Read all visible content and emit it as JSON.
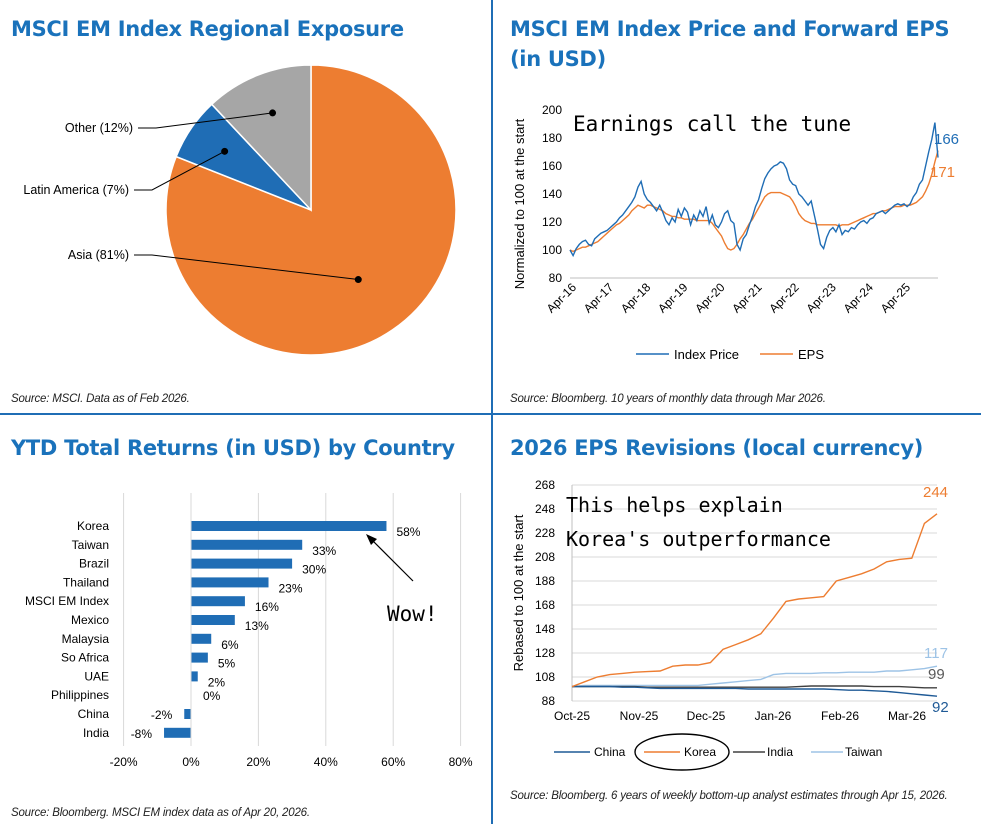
{
  "panels": [
    {
      "title": "MSCI EM Index Regional Exposure",
      "source": "Source: MSCI. Data as of Feb 2026."
    },
    {
      "title": "MSCI EM Index Price and Forward EPS (in USD)",
      "source": "Source: Bloomberg. 10 years of monthly data through Mar 2026."
    },
    {
      "title": "YTD Total Returns (in USD) by Country",
      "source": "Source: Bloomberg. MSCI EM index data as of Apr 20, 2026."
    },
    {
      "title": "2026 EPS Revisions (local currency)",
      "source": "Source: Bloomberg. 6 years of weekly bottom-up analyst estimates through Apr 15, 2026."
    }
  ],
  "chart_data": [
    {
      "type": "pie",
      "slices": [
        {
          "label": "Asia (81%)",
          "value": 81,
          "color": "#ed7d31"
        },
        {
          "label": "Latin America (7%)",
          "value": 7,
          "color": "#1f6db5"
        },
        {
          "label": "Other (12%)",
          "value": 12,
          "color": "#a6a6a6"
        }
      ]
    },
    {
      "type": "line",
      "ylabel": "Normalized to 100 at the start",
      "ylim": [
        80,
        200
      ],
      "yticks": [
        80,
        100,
        120,
        140,
        160,
        180,
        200
      ],
      "xticks": [
        "Apr-16",
        "Apr-17",
        "Apr-18",
        "Apr-19",
        "Apr-20",
        "Apr-21",
        "Apr-22",
        "Apr-23",
        "Apr-24",
        "Apr-25"
      ],
      "annotation": "Earnings call the tune",
      "series": [
        {
          "name": "Index Price",
          "color": "#1f6db5",
          "end_label": "166",
          "values": [
            100,
            96,
            101,
            104,
            106,
            107,
            104,
            103,
            108,
            110,
            112,
            113,
            114,
            116,
            118,
            120,
            123,
            125,
            128,
            131,
            134,
            138,
            145,
            149,
            140,
            136,
            134,
            131,
            128,
            132,
            127,
            121,
            118,
            123,
            120,
            129,
            124,
            130,
            127,
            118,
            125,
            121,
            128,
            124,
            131,
            119,
            125,
            118,
            116,
            120,
            126,
            128,
            121,
            119,
            104,
            100,
            108,
            111,
            118,
            124,
            131,
            136,
            144,
            151,
            155,
            158,
            160,
            161,
            163,
            162,
            158,
            150,
            147,
            146,
            140,
            138,
            135,
            132,
            135,
            125,
            115,
            104,
            101,
            109,
            114,
            116,
            113,
            118,
            111,
            114,
            113,
            116,
            115,
            118,
            120,
            121,
            119,
            122,
            123,
            126,
            127,
            128,
            126,
            128,
            130,
            132,
            133,
            132,
            133,
            131,
            133,
            138,
            141,
            147,
            150,
            160,
            170,
            179,
            191,
            166
          ]
        },
        {
          "name": "EPS",
          "color": "#ed7d31",
          "end_label": "171",
          "values": [
            100,
            99,
            100,
            101,
            102,
            102,
            103,
            104,
            105,
            106,
            108,
            110,
            112,
            114,
            116,
            118,
            119,
            121,
            123,
            125,
            128,
            130,
            132,
            131,
            130,
            132,
            132,
            131,
            130,
            129,
            128,
            126,
            125,
            124,
            124,
            123,
            123,
            122,
            122,
            122,
            122,
            121,
            121,
            121,
            121,
            121,
            119,
            116,
            113,
            110,
            105,
            101,
            100,
            101,
            104,
            108,
            111,
            115,
            119,
            122,
            126,
            130,
            134,
            138,
            140,
            141,
            141,
            141,
            141,
            140,
            139,
            138,
            135,
            131,
            126,
            123,
            121,
            120,
            119,
            119,
            118,
            118,
            118,
            118,
            118,
            118,
            118,
            117,
            118,
            118,
            118,
            119,
            120,
            121,
            122,
            123,
            124,
            125,
            126,
            126,
            127,
            128,
            128,
            129,
            130,
            131,
            131,
            131,
            132,
            132,
            132,
            133,
            134,
            136,
            138,
            142,
            147,
            154,
            163,
            171
          ]
        }
      ]
    },
    {
      "type": "bar",
      "orientation": "horizontal",
      "categories": [
        "Korea",
        "Taiwan",
        "Brazil",
        "Thailand",
        "MSCI EM Index",
        "Mexico",
        "Malaysia",
        "So Africa",
        "UAE",
        "Philippines",
        "China",
        "India"
      ],
      "values": [
        58,
        33,
        30,
        23,
        16,
        13,
        6,
        5,
        2,
        0,
        -2,
        -8
      ],
      "labels": [
        "58%",
        "33%",
        "30%",
        "23%",
        "16%",
        "13%",
        "6%",
        "5%",
        "2%",
        "0%",
        "-2%",
        "-8%"
      ],
      "xlim": [
        -20,
        80
      ],
      "xticks": [
        "-20%",
        "0%",
        "20%",
        "40%",
        "60%",
        "80%"
      ],
      "annotation": "Wow!"
    },
    {
      "type": "line",
      "ylabel": "Rebased to 100 at the start",
      "ylim": [
        88,
        268
      ],
      "yticks": [
        88,
        108,
        128,
        148,
        168,
        188,
        208,
        228,
        248,
        268
      ],
      "xticks": [
        "Oct-25",
        "Nov-25",
        "Dec-25",
        "Jan-26",
        "Feb-26",
        "Mar-26"
      ],
      "annotation": [
        "This helps explain",
        "Korea's outperformance"
      ],
      "series": [
        {
          "name": "China",
          "color": "#1f5a96",
          "end_label": "92",
          "values": [
            100,
            100,
            100,
            100,
            99.5,
            99.5,
            99,
            98.5,
            98.5,
            98.5,
            98.5,
            98.5,
            98.5,
            98.5,
            98,
            98,
            98,
            98,
            98,
            98,
            98,
            97.5,
            97,
            97,
            96.5,
            96,
            95,
            94,
            93,
            92
          ]
        },
        {
          "name": "Korea",
          "color": "#ed7d31",
          "end_label": "244",
          "values": [
            100,
            104,
            108,
            110,
            111,
            112,
            112.5,
            113,
            117,
            118,
            118,
            120,
            131,
            135,
            139,
            144,
            157,
            171,
            173,
            174,
            175,
            188,
            191,
            194,
            198,
            204,
            206,
            207,
            236,
            244
          ]
        },
        {
          "name": "India",
          "color": "#404040",
          "end_label": "99",
          "values": [
            100,
            100,
            100,
            100,
            100,
            100,
            99.5,
            99.5,
            99.5,
            99.5,
            99.5,
            99.5,
            99.5,
            99.5,
            99.5,
            99.5,
            99.5,
            99.5,
            100,
            100.5,
            100.5,
            100.5,
            100.5,
            100.5,
            100,
            100,
            100,
            99.5,
            99,
            99
          ]
        },
        {
          "name": "Taiwan",
          "color": "#9dc3e6",
          "end_label": "117",
          "values": [
            100,
            101,
            101,
            101,
            101,
            101,
            101,
            101,
            101,
            101,
            101,
            102,
            103,
            104,
            105,
            106,
            110,
            111,
            111,
            111,
            111.5,
            111.5,
            112,
            112,
            112,
            113,
            113,
            114,
            115,
            117
          ]
        }
      ]
    }
  ]
}
